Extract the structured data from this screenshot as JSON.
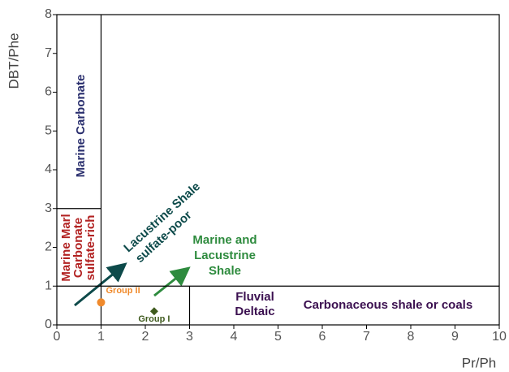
{
  "chart_data": {
    "type": "scatter",
    "x_label": "Pr/Ph",
    "y_label": "DBT/Phe",
    "xlim": [
      0,
      10
    ],
    "ylim": [
      0,
      8
    ],
    "xticks": [
      0,
      1,
      2,
      3,
      4,
      5,
      6,
      7,
      8,
      9,
      10
    ],
    "yticks": [
      0,
      1,
      2,
      3,
      4,
      5,
      6,
      7,
      8
    ],
    "boundaries": [
      {
        "x": [
          1,
          1
        ],
        "y": [
          0,
          8
        ]
      },
      {
        "x": [
          0,
          1
        ],
        "y": [
          3,
          3
        ]
      },
      {
        "x": [
          0,
          10
        ],
        "y": [
          1,
          1
        ]
      },
      {
        "x": [
          3,
          3
        ],
        "y": [
          0,
          1
        ]
      }
    ],
    "series": [
      {
        "name": "Group II",
        "color": "#f08a2c",
        "marker": "circle",
        "x": [
          1
        ],
        "y": [
          0.58
        ]
      },
      {
        "name": "Group I",
        "color": "#3f5a1e",
        "marker": "diamond",
        "x": [
          2.2
        ],
        "y": [
          0.35
        ]
      }
    ],
    "annotations": [
      "Marine Carbonate",
      "Marine Marl",
      "Carbonate",
      "sulfate-rich",
      "Lacustrine Shale",
      "sulfate-poor",
      "Marine and",
      "Lacustrine",
      "Shale",
      "Fluvial",
      "Deltaic",
      "Carbonaceous shale or coals"
    ]
  }
}
